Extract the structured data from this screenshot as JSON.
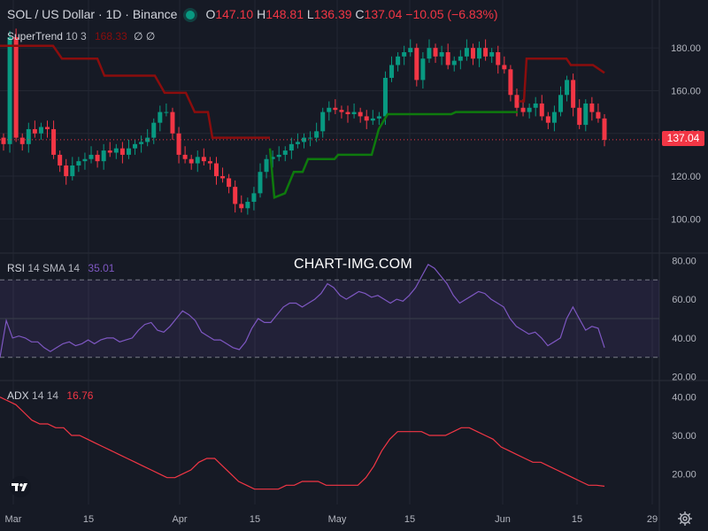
{
  "header": {
    "symbol": "SOL / US Dollar · 1D · Binance",
    "o_label": "O",
    "o_value": "147.10",
    "h_label": "H",
    "h_value": "148.81",
    "l_label": "L",
    "l_value": "136.39",
    "c_label": "C",
    "c_value": "137.04",
    "change": "−10.05 (−6.83%)",
    "status_icon": "market-open-dot-icon"
  },
  "indicators": {
    "supertrend": {
      "label": "SuperTrend",
      "params": "10 3",
      "value": "168.33",
      "icons": "∅ ∅"
    },
    "rsi": {
      "label": "RSI",
      "params": "14 SMA 14",
      "value": "35.01"
    },
    "adx": {
      "label": "ADX",
      "params": "14 14",
      "value": "16.76"
    }
  },
  "watermark": "CHART-IMG.COM",
  "last_price_label": "137.04",
  "colors": {
    "bg": "#161a25",
    "up": "#089981",
    "down": "#f23645",
    "st_up": "#0e7a0d",
    "st_down": "#8b0d0d",
    "rsi": "#7e57c2",
    "adx": "#f23645",
    "grid": "#232733"
  },
  "chart_data": [
    {
      "type": "candlestick",
      "title": "SOL / US Dollar · 1D · Binance",
      "x_ticks": [
        "Mar",
        "15",
        "Apr",
        "15",
        "May",
        "15",
        "Jun",
        "15",
        "29"
      ],
      "y_ticks": [
        "100.00",
        "120.00",
        "140.00",
        "160.00",
        "180.00"
      ],
      "ylim": [
        84,
        190
      ],
      "grid": true,
      "close": [
        135,
        185,
        138,
        135,
        142,
        140,
        143,
        142,
        130,
        125,
        120,
        125,
        127,
        128,
        130,
        127,
        132,
        131,
        133,
        130,
        133,
        135,
        136,
        138,
        145,
        150,
        150,
        140,
        130,
        128,
        126,
        129,
        127,
        126,
        120,
        119,
        115,
        107,
        105,
        108,
        112,
        122,
        128,
        129,
        130,
        132,
        135,
        136,
        138,
        138,
        141,
        150,
        152,
        151,
        150,
        149,
        150,
        148,
        146,
        147,
        148,
        166,
        172,
        176,
        178,
        180,
        165,
        175,
        180,
        176,
        178,
        172,
        174,
        176,
        180,
        175,
        180,
        176,
        178,
        172,
        170,
        158,
        152,
        150,
        152,
        154,
        148,
        145,
        150,
        158,
        165,
        152,
        144,
        154,
        150,
        147,
        137
      ],
      "supertrend_down": [
        {
          "from": "Mar 1",
          "to": "Apr 7",
          "values_start": 185,
          "values_end": 138
        },
        {
          "from": "Jun 4",
          "to": "Jun 20",
          "values_start": 175,
          "values_end": 168.33
        }
      ],
      "supertrend_up": [
        {
          "from": "Apr 18",
          "to": "Jun 3",
          "values_start": 109,
          "values_end": 149
        }
      ]
    },
    {
      "type": "line",
      "name": "RSI 14 SMA 14",
      "y_ticks": [
        "20.00",
        "40.00",
        "60.00",
        "80.00"
      ],
      "ylim": [
        18,
        82
      ],
      "band": [
        30,
        70
      ],
      "values": [
        30,
        49,
        40,
        41,
        40,
        38,
        38,
        35,
        33,
        35,
        37,
        38,
        36,
        37,
        39,
        37,
        39,
        40,
        40,
        38,
        39,
        40,
        44,
        47,
        48,
        44,
        43,
        46,
        50,
        54,
        52,
        49,
        43,
        41,
        39,
        39,
        37,
        35,
        34,
        38,
        45,
        50,
        48,
        48,
        52,
        56,
        58,
        58,
        56,
        58,
        60,
        63,
        68,
        66,
        62,
        60,
        62,
        64,
        63,
        61,
        62,
        60,
        58,
        60,
        59,
        62,
        66,
        72,
        78,
        76,
        72,
        68,
        62,
        58,
        60,
        62,
        64,
        63,
        60,
        58,
        56,
        50,
        46,
        44,
        42,
        43,
        40,
        36,
        38,
        40,
        50,
        56,
        50,
        44,
        46,
        45,
        35.01
      ]
    },
    {
      "type": "line",
      "name": "ADX 14 14",
      "y_ticks": [
        "20.00",
        "30.00",
        "40.00"
      ],
      "ylim": [
        12,
        42
      ],
      "values": [
        40,
        39,
        38,
        36,
        34,
        33,
        33,
        32,
        32,
        30,
        30,
        29,
        28,
        27,
        26,
        25,
        24,
        23,
        22,
        21,
        20,
        19,
        19,
        20,
        21,
        23,
        24,
        24,
        22,
        20,
        18,
        17,
        16,
        16,
        16,
        16,
        17,
        17,
        18,
        18,
        18,
        17,
        17,
        17,
        17,
        17,
        19,
        22,
        26,
        29,
        31,
        31,
        31,
        31,
        30,
        30,
        30,
        31,
        32,
        32,
        31,
        30,
        29,
        27,
        26,
        25,
        24,
        23,
        23,
        22,
        21,
        20,
        19,
        18,
        17,
        17,
        16.76
      ]
    }
  ]
}
